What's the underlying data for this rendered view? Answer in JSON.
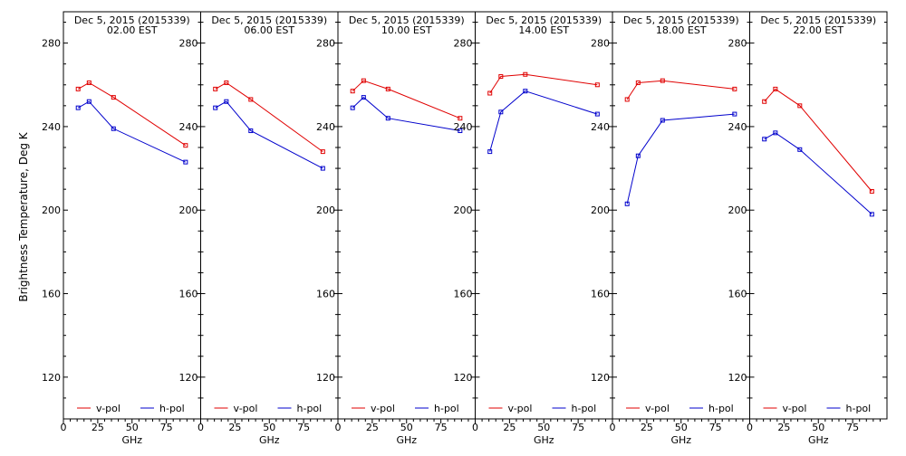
{
  "figure": {
    "ylabel": "Brightness Temperature, Deg K",
    "xlabel": "GHz"
  },
  "chart_data": [
    {
      "type": "line",
      "title": "Dec  5, 2015 (2015339)",
      "subtitle": "02.00 EST",
      "xlabel": "GHz",
      "ylabel": "Brightness Temperature, Deg K",
      "xlim": [
        0,
        100
      ],
      "ylim": [
        100,
        295
      ],
      "x_ticks": [
        0,
        25,
        50,
        75
      ],
      "y_ticks": [
        120,
        160,
        200,
        240,
        280
      ],
      "legend": "bottom",
      "series": [
        {
          "name": "v-pol",
          "color": "#e00000",
          "x": [
            10.7,
            18.7,
            36.5,
            89
          ],
          "y": [
            258,
            261,
            254,
            231
          ]
        },
        {
          "name": "h-pol",
          "color": "#0000cc",
          "x": [
            10.7,
            18.7,
            36.5,
            89
          ],
          "y": [
            249,
            252,
            239,
            223
          ]
        }
      ]
    },
    {
      "type": "line",
      "title": "Dec  5, 2015 (2015339)",
      "subtitle": "06.00 EST",
      "xlabel": "GHz",
      "xlim": [
        0,
        100
      ],
      "ylim": [
        100,
        295
      ],
      "x_ticks": [
        0,
        25,
        50,
        75
      ],
      "y_ticks": [
        120,
        160,
        200,
        240,
        280
      ],
      "legend": "bottom",
      "series": [
        {
          "name": "v-pol",
          "color": "#e00000",
          "x": [
            10.7,
            18.7,
            36.5,
            89
          ],
          "y": [
            258,
            261,
            253,
            228
          ]
        },
        {
          "name": "h-pol",
          "color": "#0000cc",
          "x": [
            10.7,
            18.7,
            36.5,
            89
          ],
          "y": [
            249,
            252,
            238,
            220
          ]
        }
      ]
    },
    {
      "type": "line",
      "title": "Dec  5, 2015 (2015339)",
      "subtitle": "10.00 EST",
      "xlabel": "GHz",
      "xlim": [
        0,
        100
      ],
      "ylim": [
        100,
        295
      ],
      "x_ticks": [
        0,
        25,
        50,
        75
      ],
      "y_ticks": [
        120,
        160,
        200,
        240,
        280
      ],
      "legend": "bottom",
      "series": [
        {
          "name": "v-pol",
          "color": "#e00000",
          "x": [
            10.7,
            18.7,
            36.5,
            89
          ],
          "y": [
            257,
            262,
            258,
            244
          ]
        },
        {
          "name": "h-pol",
          "color": "#0000cc",
          "x": [
            10.7,
            18.7,
            36.5,
            89
          ],
          "y": [
            249,
            254,
            244,
            238
          ]
        }
      ]
    },
    {
      "type": "line",
      "title": "Dec  5, 2015 (2015339)",
      "subtitle": "14.00 EST",
      "xlabel": "GHz",
      "xlim": [
        0,
        100
      ],
      "ylim": [
        100,
        295
      ],
      "x_ticks": [
        0,
        25,
        50,
        75
      ],
      "y_ticks": [
        120,
        160,
        200,
        240,
        280
      ],
      "legend": "bottom",
      "series": [
        {
          "name": "v-pol",
          "color": "#e00000",
          "x": [
            10.7,
            18.7,
            36.5,
            89
          ],
          "y": [
            256,
            264,
            265,
            260
          ]
        },
        {
          "name": "h-pol",
          "color": "#0000cc",
          "x": [
            10.7,
            18.7,
            36.5,
            89
          ],
          "y": [
            228,
            247,
            257,
            246
          ]
        }
      ]
    },
    {
      "type": "line",
      "title": "Dec  5, 2015 (2015339)",
      "subtitle": "18.00 EST",
      "xlabel": "GHz",
      "xlim": [
        0,
        100
      ],
      "ylim": [
        100,
        295
      ],
      "x_ticks": [
        0,
        25,
        50,
        75
      ],
      "y_ticks": [
        120,
        160,
        200,
        240,
        280
      ],
      "legend": "bottom",
      "series": [
        {
          "name": "v-pol",
          "color": "#e00000",
          "x": [
            10.7,
            18.7,
            36.5,
            89
          ],
          "y": [
            253,
            261,
            262,
            258
          ]
        },
        {
          "name": "h-pol",
          "color": "#0000cc",
          "x": [
            10.7,
            18.7,
            36.5,
            89
          ],
          "y": [
            203,
            226,
            243,
            246
          ]
        }
      ]
    },
    {
      "type": "line",
      "title": "Dec  5, 2015 (2015339)",
      "subtitle": "22.00 EST",
      "xlabel": "GHz",
      "xlim": [
        0,
        100
      ],
      "ylim": [
        100,
        295
      ],
      "x_ticks": [
        0,
        25,
        50,
        75
      ],
      "y_ticks": [
        120,
        160,
        200,
        240,
        280
      ],
      "legend": "bottom",
      "series": [
        {
          "name": "v-pol",
          "color": "#e00000",
          "x": [
            10.7,
            18.7,
            36.5,
            89
          ],
          "y": [
            252,
            258,
            250,
            209
          ]
        },
        {
          "name": "h-pol",
          "color": "#0000cc",
          "x": [
            10.7,
            18.7,
            36.5,
            89
          ],
          "y": [
            234,
            237,
            229,
            198
          ]
        }
      ]
    }
  ]
}
